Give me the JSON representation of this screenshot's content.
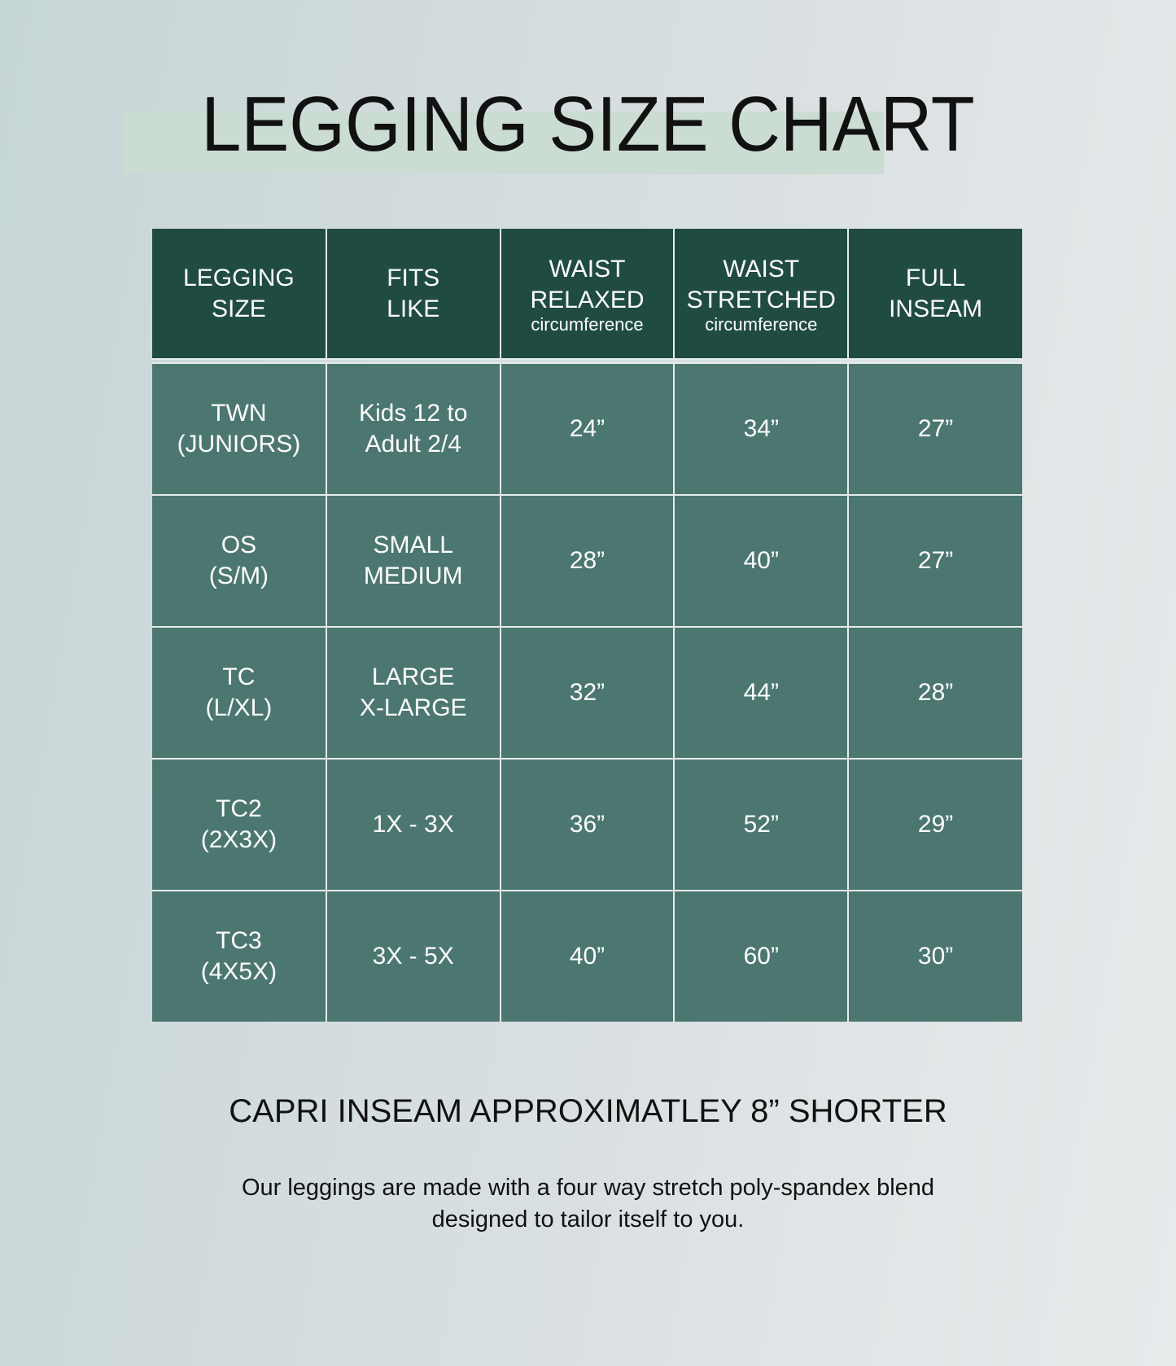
{
  "title": "LEGGING SIZE CHART",
  "colors": {
    "header": "#1f4b43",
    "body": "#4b7770",
    "highlight": "#cbdcd3"
  },
  "table": {
    "headers": [
      {
        "line1": "LEGGING",
        "line2": "SIZE",
        "sub": ""
      },
      {
        "line1": "FITS",
        "line2": "LIKE",
        "sub": ""
      },
      {
        "line1": "WAIST",
        "line2": "RELAXED",
        "sub": "circumference"
      },
      {
        "line1": "WAIST",
        "line2": "STRETCHED",
        "sub": "circumference"
      },
      {
        "line1": "FULL",
        "line2": "INSEAM",
        "sub": ""
      }
    ],
    "rows": [
      {
        "size": [
          "TWN",
          "(JUNIORS)"
        ],
        "fits": [
          "Kids 12 to",
          "Adult 2/4"
        ],
        "relaxed": "24”",
        "stretched": "34”",
        "inseam": "27”"
      },
      {
        "size": [
          "OS",
          "(S/M)"
        ],
        "fits": [
          "SMALL",
          "MEDIUM"
        ],
        "relaxed": "28”",
        "stretched": "40”",
        "inseam": "27”"
      },
      {
        "size": [
          "TC",
          "(L/XL)"
        ],
        "fits": [
          "LARGE",
          "X-LARGE"
        ],
        "relaxed": "32”",
        "stretched": "44”",
        "inseam": "28”"
      },
      {
        "size": [
          "TC2",
          "(2X3X)"
        ],
        "fits": [
          "1X - 3X",
          ""
        ],
        "relaxed": "36”",
        "stretched": "52”",
        "inseam": "29”"
      },
      {
        "size": [
          "TC3",
          "(4X5X)"
        ],
        "fits": [
          "3X - 5X",
          ""
        ],
        "relaxed": "40”",
        "stretched": "60”",
        "inseam": "30”"
      }
    ]
  },
  "capri_note": "CAPRI INSEAM APPROXIMATLEY 8” SHORTER",
  "description": [
    "Our leggings are made with a four way stretch poly-spandex blend",
    "designed to tailor itself to you."
  ]
}
